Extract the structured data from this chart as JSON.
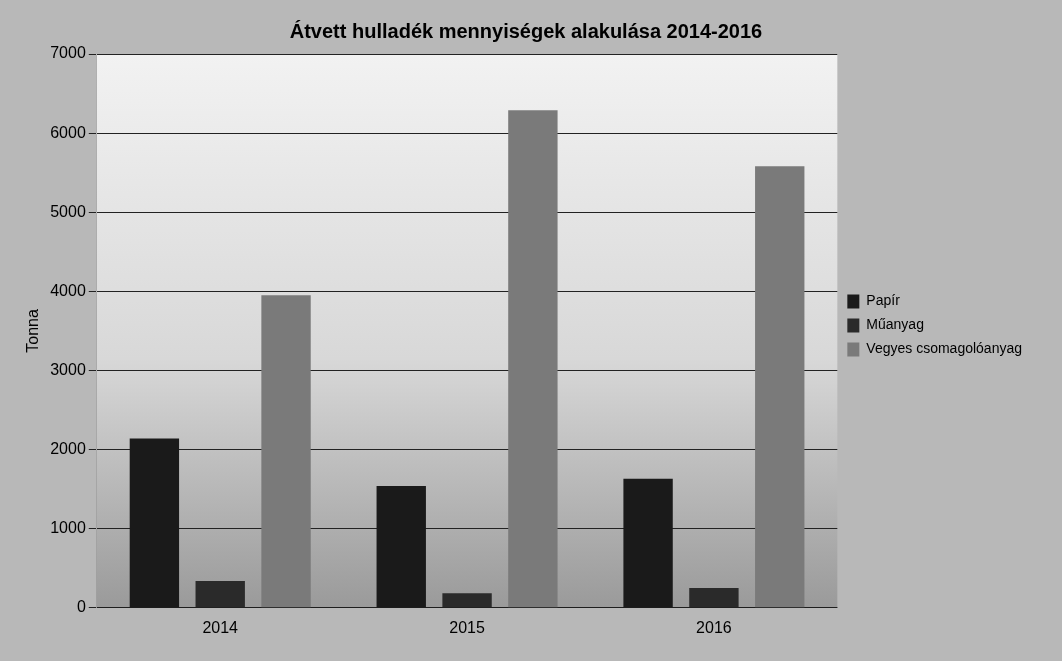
{
  "chart_data": {
    "type": "bar",
    "title": "Átvett hulladék mennyiségek alakulása 2014-2016",
    "ylabel": "Tonna",
    "categories": [
      "2014",
      "2015",
      "2016"
    ],
    "series": [
      {
        "name": "Papír",
        "color": "#1a1a1a",
        "values": [
          2140,
          1540,
          1630
        ]
      },
      {
        "name": "Műanyag",
        "color": "#2a2a2a",
        "values": [
          340,
          185,
          250
        ]
      },
      {
        "name": "Vegyes csomagolóanyag",
        "color": "#7a7a7a",
        "values": [
          3950,
          6290,
          5580
        ]
      }
    ],
    "ylim": [
      0,
      7000
    ],
    "yticks": [
      0,
      1000,
      2000,
      3000,
      4000,
      5000,
      6000,
      7000
    ],
    "grid": "y",
    "legend": "right"
  }
}
